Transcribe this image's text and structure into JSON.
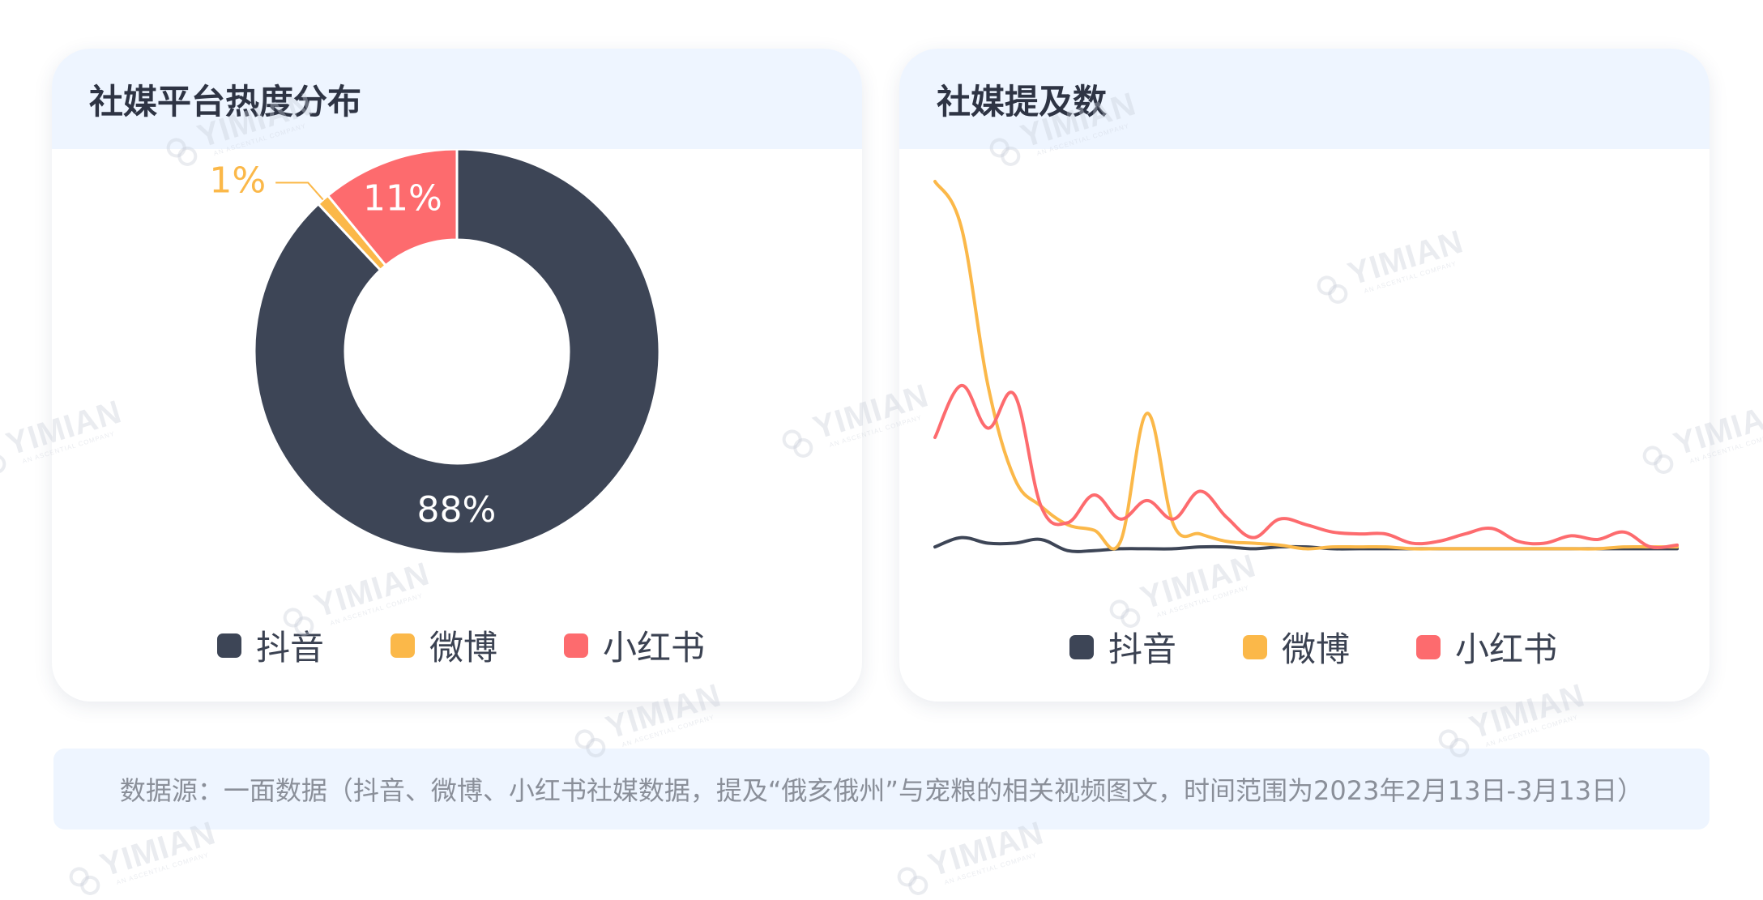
{
  "colors": {
    "douyin": "#3d4556",
    "weibo": "#fbb849",
    "xiaohongshu": "#fd6b6e"
  },
  "left_card": {
    "title": "社媒平台热度分布"
  },
  "right_card": {
    "title": "社媒提及数"
  },
  "legend": [
    "抖音",
    "微博",
    "小红书"
  ],
  "chart_data": [
    {
      "type": "pie",
      "title": "社媒平台热度分布",
      "donut": true,
      "slices": [
        {
          "label": "抖音",
          "value": 88,
          "display": "88%",
          "color": "#3d4556"
        },
        {
          "label": "微博",
          "value": 1,
          "display": "1%",
          "color": "#fbb849"
        },
        {
          "label": "小红书",
          "value": 11,
          "display": "11%",
          "color": "#fd6b6e"
        }
      ],
      "legend_position": "bottom"
    },
    {
      "type": "line",
      "title": "社媒提及数",
      "smooth": true,
      "axes_visible": false,
      "x": [
        1,
        2,
        3,
        4,
        5,
        6,
        7,
        8,
        9,
        10,
        11,
        12,
        13,
        14,
        15,
        16,
        17,
        18,
        19,
        20,
        21,
        22,
        23,
        24,
        25,
        26,
        27,
        28,
        29
      ],
      "series": [
        {
          "name": "抖音",
          "color": "#3d4556",
          "values": [
            3,
            8,
            5,
            5,
            7,
            1,
            1,
            2,
            2,
            2,
            3,
            3,
            2,
            3,
            3,
            2,
            2,
            2,
            2,
            2,
            2,
            2,
            2,
            2,
            2,
            2,
            2,
            2,
            2
          ]
        },
        {
          "name": "微博",
          "color": "#fbb849",
          "values": [
            200,
            175,
            90,
            40,
            25,
            15,
            12,
            6,
            75,
            15,
            10,
            6,
            5,
            4,
            2,
            3,
            3,
            3,
            2,
            2,
            2,
            2,
            2,
            2,
            2,
            2,
            3,
            3,
            3
          ]
        },
        {
          "name": "小红书",
          "color": "#fd6b6e",
          "values": [
            62,
            90,
            67,
            85,
            25,
            16,
            31,
            18,
            28,
            18,
            33,
            19,
            8,
            18,
            15,
            11,
            10,
            10,
            5,
            6,
            10,
            13,
            6,
            5,
            9,
            7,
            11,
            3,
            4
          ]
        }
      ],
      "legend_position": "bottom"
    }
  ],
  "footer": {
    "source": "数据源：一面数据（抖音、微博、小红书社媒数据，提及“俄亥俄州”与宠粮的相关视频图文，时间范围为2023年2月13日-3月13日）"
  },
  "watermark": {
    "text": "YIMIAN",
    "subtext": "AN ASCENTIAL COMPANY"
  }
}
